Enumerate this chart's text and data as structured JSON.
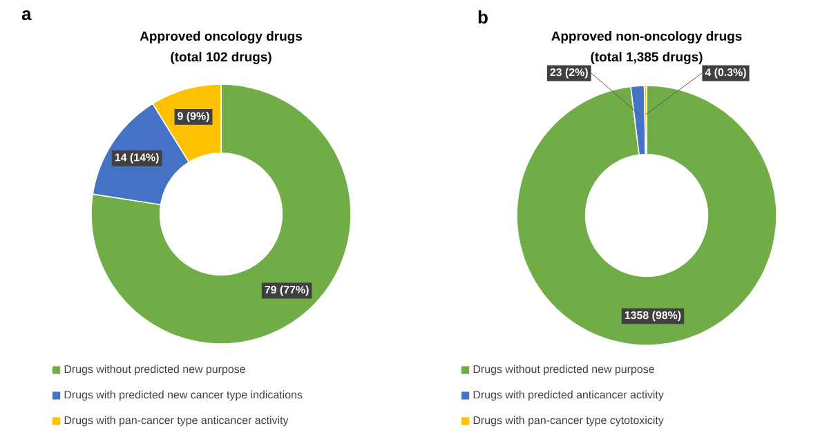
{
  "chart_data": [
    {
      "type": "donut",
      "title": "Approved oncology drugs",
      "subtitle": "(total 102 drugs)",
      "annotations": [
        "a"
      ],
      "categories": [
        "Drugs without predicted new purpose",
        "Drugs with predicted new cancer type indications",
        "Drugs with pan-cancer type anticancer activity"
      ],
      "values": [
        79,
        14,
        9
      ],
      "colors": [
        "#70ad47",
        "#4472c4",
        "#ffc000"
      ],
      "value_labels": [
        "79 (77%)",
        "14 (14%)",
        "9 (9%)"
      ],
      "legend": "bottom"
    },
    {
      "type": "donut",
      "title": "Approved non-oncology drugs",
      "subtitle": "(total 1,385 drugs)",
      "annotations": [
        "b"
      ],
      "categories": [
        "Drugs without predicted new purpose",
        "Drugs with predicted anticancer activity",
        "Drugs with pan-cancer type cytotoxicity"
      ],
      "values": [
        1358,
        23,
        4
      ],
      "colors": [
        "#70ad47",
        "#4472c4",
        "#ffc000"
      ],
      "value_labels": [
        "1358 (98%)",
        "23 (2%)",
        "4 (0.3%)"
      ],
      "legend": "bottom"
    }
  ]
}
